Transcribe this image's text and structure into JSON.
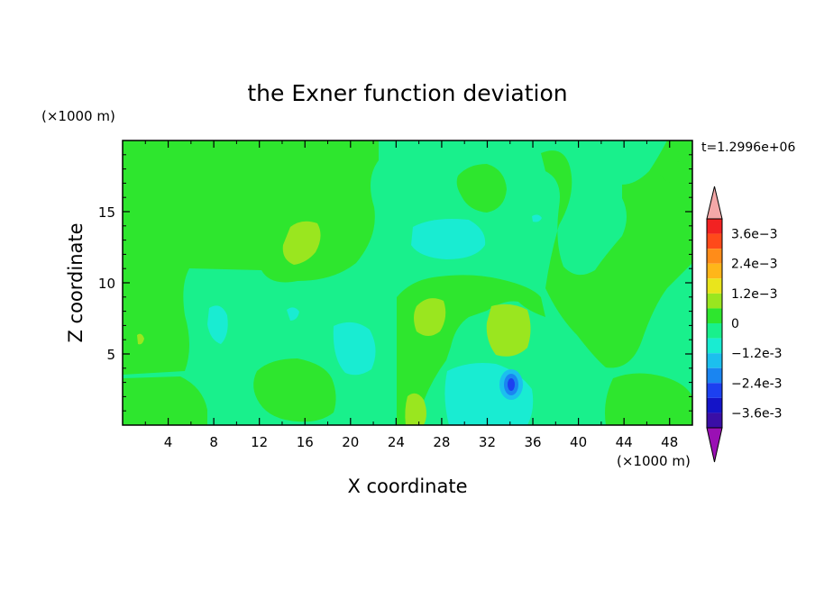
{
  "chart_data": {
    "type": "heatmap",
    "title": "the Exner function deviation",
    "xlabel": "X coordinate",
    "ylabel": "Z coordinate",
    "x_unit": "(×1000 m)",
    "y_unit": "(×1000 m)",
    "time_label": "t=1.2996e+06",
    "xlim": [
      0,
      50
    ],
    "ylim": [
      0,
      20
    ],
    "x_ticks": [
      "4",
      "8",
      "12",
      "16",
      "20",
      "24",
      "28",
      "32",
      "36",
      "40",
      "44",
      "48"
    ],
    "y_ticks": [
      "5",
      "10",
      "15"
    ],
    "background_level": "0",
    "levels": [
      {
        "label": "3.6e-3",
        "color": "#f22222"
      },
      {
        "label": "",
        "color": "#ff4a1a"
      },
      {
        "label": "2.4e-3",
        "color": "#ff8c19"
      },
      {
        "label": "",
        "color": "#ffb619"
      },
      {
        "label": "1.2e-3",
        "color": "#e9e51c"
      },
      {
        "label": "",
        "color": "#9ae61f"
      },
      {
        "label": "0",
        "color": "#2ee62e"
      },
      {
        "label": "",
        "color": "#19f08c"
      },
      {
        "label": "-1.2e-3",
        "color": "#19ecd2"
      },
      {
        "label": "",
        "color": "#1cbfee"
      },
      {
        "label": "-2.4e-3",
        "color": "#1a85f1"
      },
      {
        "label": "",
        "color": "#1c40f0"
      },
      {
        "label": "-3.6e-3",
        "color": "#1414c8"
      },
      {
        "label": "",
        "color": "#3a0ea6"
      }
    ],
    "over_color": "#f4a8a8",
    "under_color": "#9a10b4"
  }
}
